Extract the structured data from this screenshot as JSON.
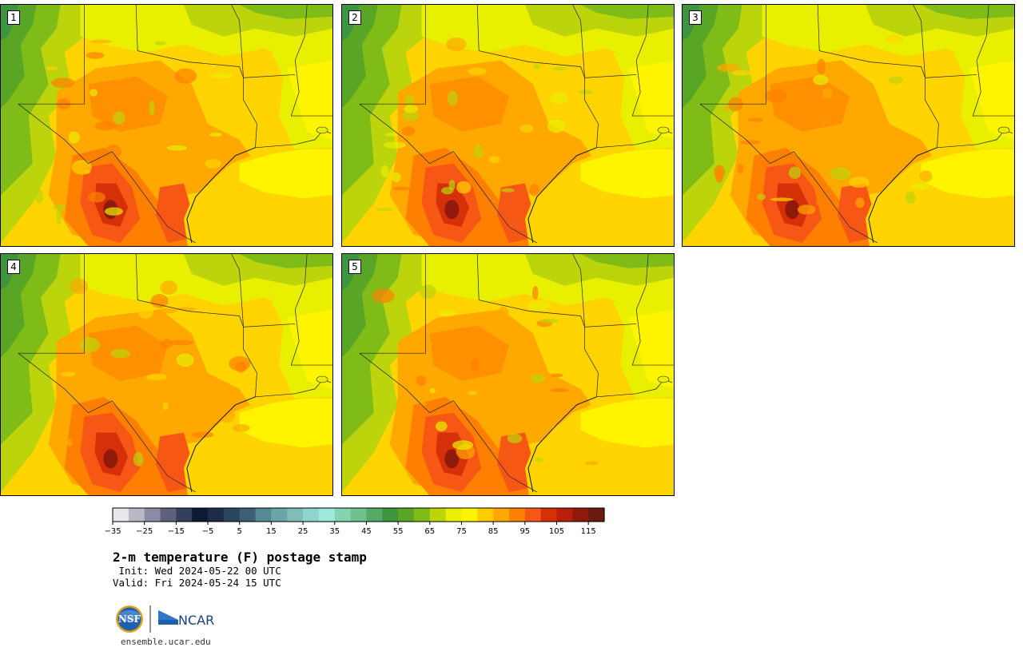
{
  "panels": [
    {
      "label": "1"
    },
    {
      "label": "2"
    },
    {
      "label": "3"
    },
    {
      "label": "4"
    },
    {
      "label": "5"
    }
  ],
  "colorbar": {
    "ticks": [
      "−35",
      "−25",
      "−15",
      "−5",
      "5",
      "15",
      "25",
      "35",
      "45",
      "55",
      "65",
      "75",
      "85",
      "95",
      "105",
      "115"
    ],
    "tick_values": [
      -35,
      -25,
      -15,
      -5,
      5,
      15,
      25,
      35,
      45,
      55,
      65,
      75,
      85,
      95,
      105,
      115
    ],
    "min": -35,
    "max": 120,
    "step": 5,
    "colors": [
      "#e8e8ec",
      "#b9b9c6",
      "#8b8ca3",
      "#5e607c",
      "#343e5e",
      "#0d1a33",
      "#1c2c48",
      "#2a4560",
      "#3b5f74",
      "#558a92",
      "#6ba4a9",
      "#80bdb8",
      "#8ed6cc",
      "#9ee9dc",
      "#82d5b0",
      "#6dc28d",
      "#55ab66",
      "#3f9440",
      "#59a626",
      "#7fbc18",
      "#bcd40c",
      "#e8f000",
      "#fff400",
      "#ffcc00",
      "#ffa800",
      "#ff8000",
      "#f75714",
      "#d63008",
      "#b8200c",
      "#8f1a0c",
      "#6a1a0f"
    ]
  },
  "title": {
    "main": "2-m temperature (F) postage stamp",
    "init": " Init: Wed 2024-05-22 00 UTC",
    "valid": "Valid: Fri 2024-05-24 15 UTC"
  },
  "branding": {
    "nsf_logo_text": "NSF",
    "ncar_logo_text": "NCAR",
    "url": "ensemble.ucar.edu"
  }
}
